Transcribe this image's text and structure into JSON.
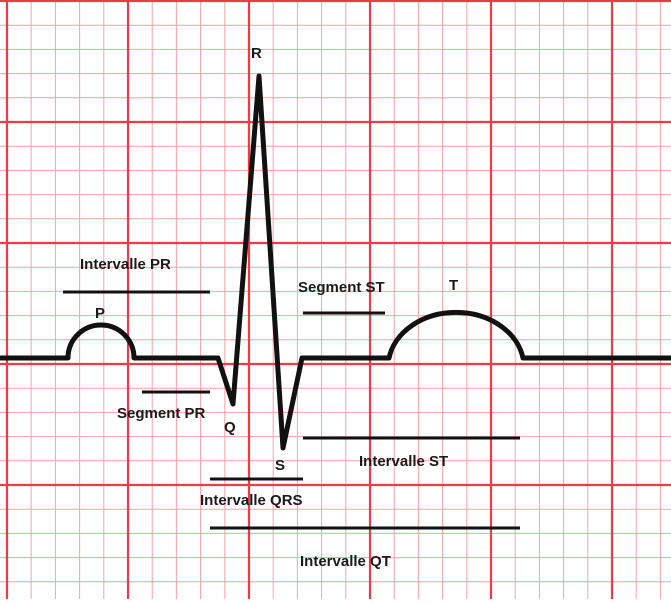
{
  "diagram": {
    "wave_labels": {
      "p": "P",
      "q": "Q",
      "r": "R",
      "s": "S",
      "t": "T"
    },
    "interval_labels": {
      "pr_interval": "Intervalle PR",
      "pr_segment": "Segment PR",
      "st_segment": "Segment ST",
      "st_interval": "Intervalle ST",
      "qrs_interval": "Intervalle QRS",
      "qt_interval": "Intervalle QT"
    },
    "colors": {
      "grid_major": "#ee3b4a",
      "grid_minor": "#f6a2aa",
      "trace": "#111111",
      "background": "#ffffff"
    }
  }
}
